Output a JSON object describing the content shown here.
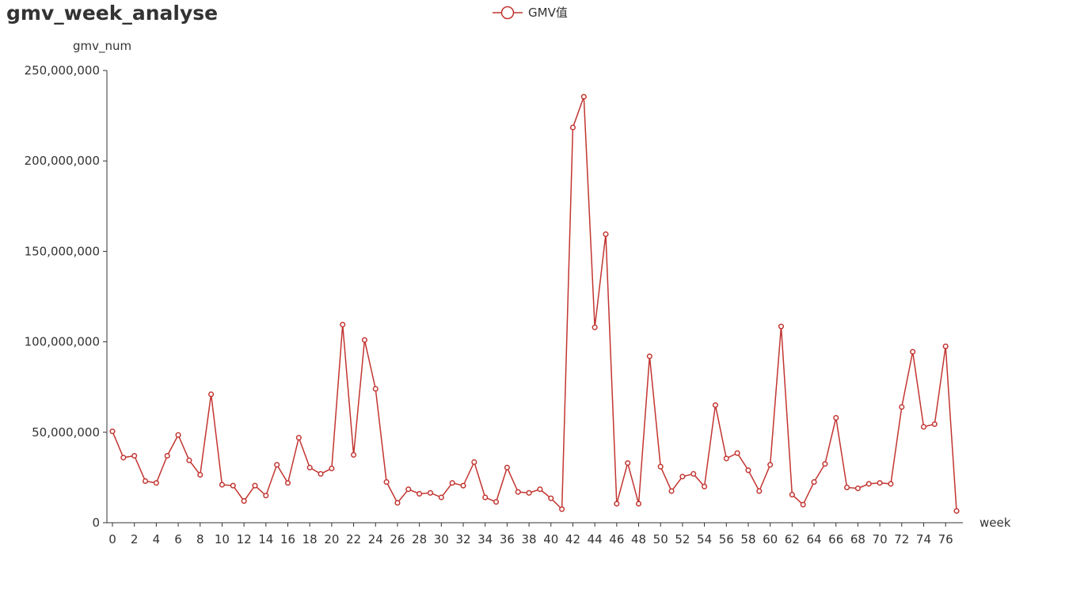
{
  "chart_data": {
    "type": "line",
    "title": "gmv_week_analyse",
    "xlabel": "week",
    "ylabel": "gmv_num",
    "legend": {
      "entries": [
        "GMV值"
      ],
      "placement": "top-center"
    },
    "ylim": [
      0,
      250000000
    ],
    "yticks": [
      0,
      50000000,
      100000000,
      150000000,
      200000000,
      250000000
    ],
    "ytick_labels": [
      "0",
      "50,000,000",
      "100,000,000",
      "150,000,000",
      "200,000,000",
      "250,000,000"
    ],
    "xlim": [
      0,
      77
    ],
    "xticks": [
      0,
      2,
      4,
      6,
      8,
      10,
      12,
      14,
      16,
      18,
      20,
      22,
      24,
      26,
      28,
      30,
      32,
      34,
      36,
      38,
      40,
      42,
      44,
      46,
      48,
      50,
      52,
      54,
      56,
      58,
      60,
      62,
      64,
      66,
      68,
      70,
      72,
      74,
      76
    ],
    "xtick_labels": [
      "0",
      "2",
      "4",
      "6",
      "8",
      "10",
      "12",
      "14",
      "16",
      "18",
      "20",
      "22",
      "24",
      "26",
      "28",
      "30",
      "32",
      "34",
      "36",
      "38",
      "40",
      "42",
      "44",
      "46",
      "48",
      "50",
      "52",
      "54",
      "56",
      "58",
      "60",
      "62",
      "64",
      "66",
      "68",
      "70",
      "72",
      "74",
      "76"
    ],
    "grid": false,
    "series_color": "#c23531",
    "series": [
      {
        "name": "GMV值",
        "x": [
          0,
          1,
          2,
          3,
          4,
          5,
          6,
          7,
          8,
          9,
          10,
          11,
          12,
          13,
          14,
          15,
          16,
          17,
          18,
          19,
          20,
          21,
          22,
          23,
          24,
          25,
          26,
          27,
          28,
          29,
          30,
          31,
          32,
          33,
          34,
          35,
          36,
          37,
          38,
          39,
          40,
          41,
          42,
          43,
          44,
          45,
          46,
          47,
          48,
          49,
          50,
          51,
          52,
          53,
          54,
          55,
          56,
          57,
          58,
          59,
          60,
          61,
          62,
          63,
          64,
          65,
          66,
          67,
          68,
          69,
          70,
          71,
          72,
          73,
          74,
          75,
          76,
          77
        ],
        "values": [
          50500000,
          36000000,
          37000000,
          23000000,
          22000000,
          37000000,
          48500000,
          34500000,
          26500000,
          71000000,
          21000000,
          20500000,
          12000000,
          20500000,
          15000000,
          32000000,
          22000000,
          47000000,
          30500000,
          27000000,
          30000000,
          109500000,
          37500000,
          101000000,
          74000000,
          22500000,
          11000000,
          18500000,
          16000000,
          16500000,
          14000000,
          22000000,
          20500000,
          33500000,
          14000000,
          11500000,
          30500000,
          17000000,
          16500000,
          18500000,
          13500000,
          7500000,
          218500000,
          235500000,
          108000000,
          159500000,
          10500000,
          33000000,
          10500000,
          92000000,
          31000000,
          17500000,
          25500000,
          27000000,
          20000000,
          65000000,
          35500000,
          38500000,
          29000000,
          17500000,
          32000000,
          108500000,
          15500000,
          10000000,
          22500000,
          32500000,
          58000000,
          19500000,
          19000000,
          21500000,
          22000000,
          21500000,
          64000000,
          94500000,
          53000000,
          54500000,
          97500000,
          6500000
        ]
      }
    ]
  }
}
